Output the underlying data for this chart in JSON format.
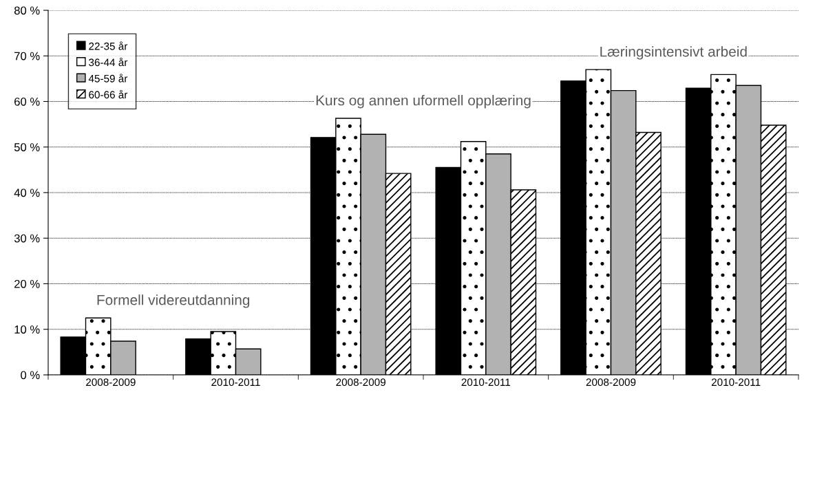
{
  "chart_data": {
    "type": "bar",
    "categories": [
      "2008-2009",
      "2010-2011",
      "2008-2009",
      "2010-2011",
      "2008-2009",
      "2010-2011"
    ],
    "series": [
      {
        "name": "22-35 år",
        "color": "#000000",
        "values": [
          8.3,
          7.9,
          52.1,
          45.5,
          64.5,
          62.9
        ]
      },
      {
        "name": "36-44 år",
        "color": "#ffffff",
        "values": [
          12.5,
          9.5,
          56.3,
          51.2,
          67.0,
          65.9
        ]
      },
      {
        "name": "45-59 år",
        "color": "#b2b2b2",
        "values": [
          7.4,
          5.7,
          52.8,
          48.5,
          62.4,
          63.5
        ]
      },
      {
        "name": "60-66 år",
        "color": "#ffffff",
        "values": [
          null,
          null,
          44.2,
          40.6,
          53.2,
          54.8
        ]
      }
    ],
    "annotations": [
      "Formell videreutdanning",
      "Kurs og annen uformell opplæring",
      "Læringsintensivt arbeid"
    ],
    "ylim": [
      0,
      80
    ],
    "yticks": [
      {
        "value": 0,
        "label": "0 %"
      },
      {
        "value": 10,
        "label": "10 %"
      },
      {
        "value": 20,
        "label": "20 %"
      },
      {
        "value": 30,
        "label": "30 %"
      },
      {
        "value": 40,
        "label": "40 %"
      },
      {
        "value": 50,
        "label": "50 %"
      },
      {
        "value": 60,
        "label": "60 %"
      },
      {
        "value": 70,
        "label": "70 %"
      },
      {
        "value": 80,
        "label": "80 %"
      }
    ],
    "grid": "y",
    "legend": "top left"
  }
}
